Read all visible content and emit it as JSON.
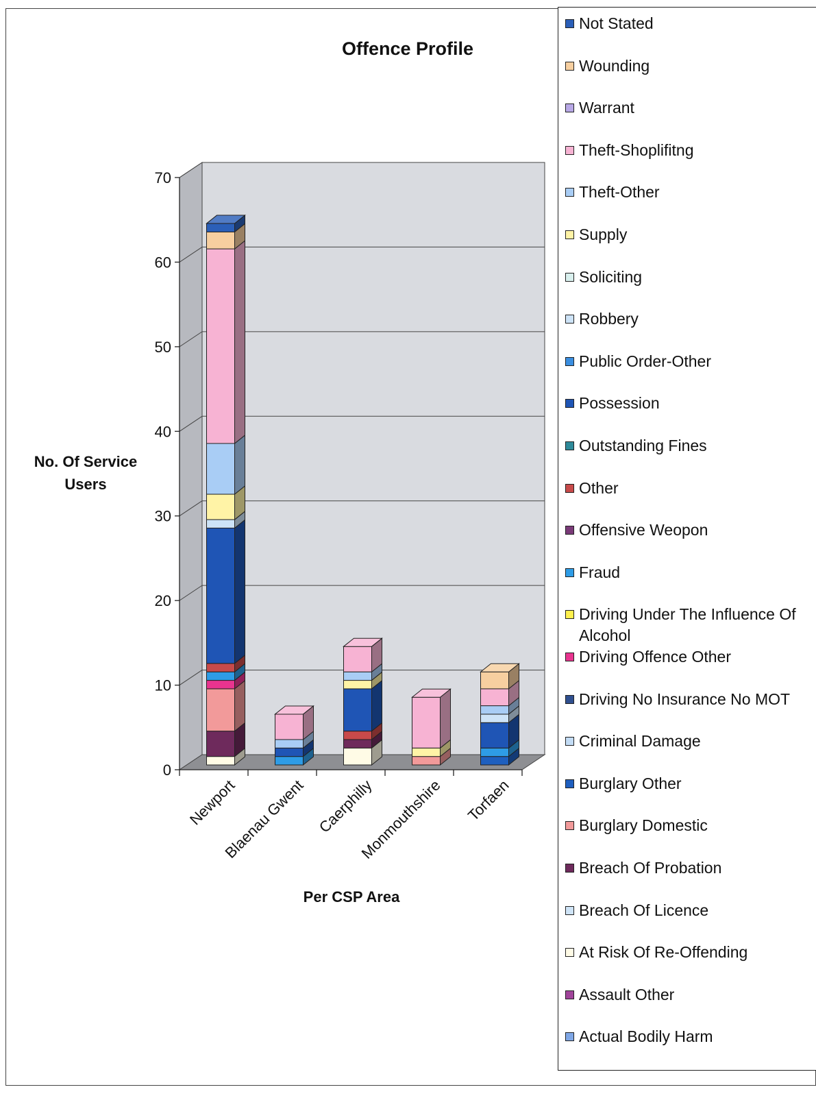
{
  "chart_data": {
    "type": "bar",
    "stacked": true,
    "three_d": true,
    "title": "Offence Profile",
    "xlabel": "Per CSP Area",
    "ylabel": "No. Of Service Users",
    "ylim": [
      0,
      70
    ],
    "yticks": [
      "0",
      "10",
      "20",
      "30",
      "40",
      "50",
      "60",
      "70"
    ],
    "grid": true,
    "legend_position": "right",
    "categories": [
      "Newport",
      "Blaenau Gwent",
      "Caerphilly",
      "Monmouthshire",
      "Torfaen"
    ],
    "series": [
      {
        "name": "Actual Bodily Harm",
        "color": "#7fa7e6",
        "values": [
          0,
          0,
          0,
          0,
          0
        ]
      },
      {
        "name": "Assault Other",
        "color": "#a0449a",
        "values": [
          0,
          0,
          0,
          0,
          0
        ]
      },
      {
        "name": "At Risk Of Re-Offending",
        "color": "#fffbe6",
        "values": [
          1,
          0,
          2,
          0,
          0
        ]
      },
      {
        "name": "Breach Of Licence",
        "color": "#cfe4f7",
        "values": [
          0,
          0,
          0,
          0,
          0
        ]
      },
      {
        "name": "Breach Of Probation",
        "color": "#6e2a5c",
        "values": [
          3,
          0,
          1,
          0,
          0
        ]
      },
      {
        "name": "Burglary Domestic",
        "color": "#f29a9a",
        "values": [
          5,
          0,
          0,
          1,
          0
        ]
      },
      {
        "name": "Burglary Other",
        "color": "#1e5fbf",
        "values": [
          0,
          0,
          0,
          0,
          1
        ]
      },
      {
        "name": "Criminal Damage",
        "color": "#c3dcf5",
        "values": [
          0,
          0,
          0,
          0,
          0
        ]
      },
      {
        "name": "Driving No Insurance No MOT",
        "color": "#2f4f8f",
        "values": [
          0,
          0,
          0,
          0,
          0
        ]
      },
      {
        "name": "Driving Offence Other",
        "color": "#e8348f",
        "values": [
          1,
          0,
          0,
          0,
          0
        ]
      },
      {
        "name": "Driving Under The Influence Of Alcohol",
        "color": "#fff04d",
        "values": [
          0,
          0,
          0,
          0,
          0
        ]
      },
      {
        "name": "Fraud",
        "color": "#2e9ce6",
        "values": [
          1,
          1,
          0,
          0,
          1
        ]
      },
      {
        "name": "Offensive Weopon",
        "color": "#7a3a78",
        "values": [
          0,
          0,
          0,
          0,
          0
        ]
      },
      {
        "name": "Other",
        "color": "#c84a4a",
        "values": [
          1,
          0,
          1,
          0,
          0
        ]
      },
      {
        "name": "Outstanding Fines",
        "color": "#2e8a9a",
        "values": [
          0,
          0,
          0,
          0,
          0
        ]
      },
      {
        "name": "Possession",
        "color": "#1f55b5",
        "values": [
          16,
          1,
          5,
          0,
          3
        ]
      },
      {
        "name": "Public Order-Other",
        "color": "#3a8ee0",
        "values": [
          0,
          0,
          0,
          0,
          0
        ]
      },
      {
        "name": "Robbery",
        "color": "#cde3f7",
        "values": [
          1,
          0,
          0,
          0,
          1
        ]
      },
      {
        "name": "Soliciting",
        "color": "#d9f0ee",
        "values": [
          0,
          0,
          0,
          0,
          0
        ]
      },
      {
        "name": "Supply",
        "color": "#fff3a6",
        "values": [
          3,
          0,
          1,
          1,
          0
        ]
      },
      {
        "name": "Theft-Other",
        "color": "#a9cdf5",
        "values": [
          6,
          1,
          1,
          0,
          1
        ]
      },
      {
        "name": "Theft-Shoplifitng",
        "color": "#f7b3d3",
        "values": [
          23,
          3,
          3,
          6,
          2
        ]
      },
      {
        "name": "Warrant",
        "color": "#b8a8e6",
        "values": [
          0,
          0,
          0,
          0,
          0
        ]
      },
      {
        "name": "Wounding",
        "color": "#f7cfa0",
        "values": [
          2,
          0,
          0,
          0,
          2
        ]
      },
      {
        "name": "Not Stated",
        "color": "#2b5fb8",
        "values": [
          1,
          0,
          0,
          0,
          0
        ]
      }
    ]
  }
}
